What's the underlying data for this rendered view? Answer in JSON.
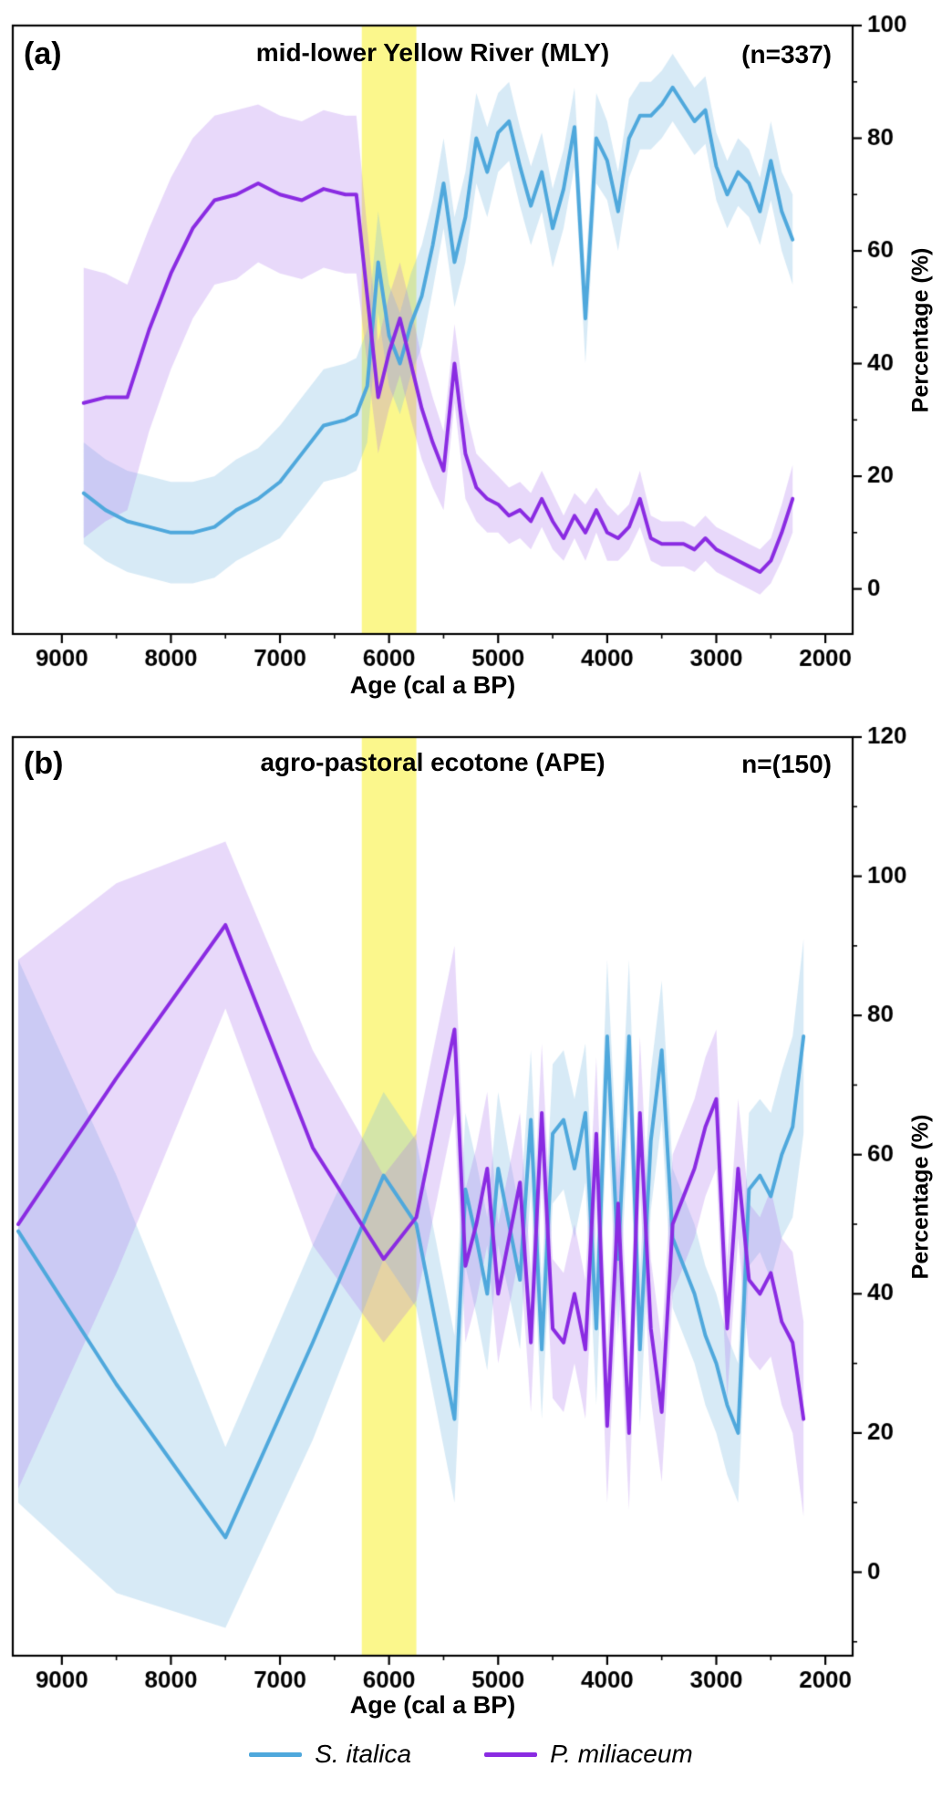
{
  "figure": {
    "legend": {
      "items": [
        {
          "label": "S. italica",
          "color": "#4FA8DC"
        },
        {
          "label": "P. miliaceum",
          "color": "#8A2BE2"
        }
      ]
    }
  },
  "chart_data": [
    {
      "type": "line",
      "panel_label": "(a)",
      "title": "mid-lower Yellow River (MLY)",
      "n_label": "(n=337)",
      "xlabel": "Age (cal a BP)",
      "ylabel": "Percentage (%)",
      "x_axis_reversed": true,
      "xlim": [
        9450,
        1750
      ],
      "ylim": [
        -8,
        100
      ],
      "x_ticks": [
        9000,
        8000,
        7000,
        6000,
        5000,
        4000,
        3000,
        2000
      ],
      "y_ticks": [
        0,
        20,
        40,
        60,
        80,
        100
      ],
      "x_minor_step": 500,
      "y_minor_step": 10,
      "grid": false,
      "highlight_band": {
        "x_from": 6250,
        "x_to": 5750,
        "color": "rgba(250,246,120,0.85)"
      },
      "x": [
        8800,
        8600,
        8400,
        8200,
        8000,
        7800,
        7600,
        7400,
        7200,
        7000,
        6800,
        6600,
        6400,
        6300,
        6200,
        6100,
        6000,
        5900,
        5800,
        5700,
        5600,
        5500,
        5400,
        5300,
        5200,
        5100,
        5000,
        4900,
        4800,
        4700,
        4600,
        4500,
        4400,
        4300,
        4200,
        4100,
        4000,
        3900,
        3800,
        3700,
        3600,
        3500,
        3400,
        3300,
        3200,
        3100,
        3000,
        2900,
        2800,
        2700,
        2600,
        2500,
        2400,
        2300
      ],
      "series": [
        {
          "name": "S. italica",
          "color": "#4FA8DC",
          "band_color": "rgba(130,190,228,0.32)",
          "y": [
            17,
            14,
            12,
            11,
            10,
            10,
            11,
            14,
            16,
            19,
            24,
            29,
            30,
            31,
            36,
            58,
            45,
            40,
            47,
            52,
            61,
            72,
            58,
            66,
            80,
            74,
            81,
            83,
            75,
            68,
            74,
            64,
            71,
            82,
            48,
            80,
            76,
            67,
            80,
            84,
            84,
            86,
            89,
            86,
            83,
            85,
            75,
            70,
            74,
            72,
            67,
            76,
            67,
            62
          ],
          "band": [
            9,
            9,
            9,
            9,
            9,
            9,
            9,
            9,
            9,
            10,
            10,
            10,
            10,
            10,
            10,
            9,
            9,
            9,
            9,
            9,
            8,
            8,
            8,
            8,
            8,
            8,
            7,
            7,
            7,
            7,
            7,
            7,
            7,
            7,
            8,
            8,
            7,
            7,
            7,
            6,
            6,
            6,
            6,
            6,
            6,
            6,
            6,
            6,
            6,
            6,
            6,
            7,
            7,
            8
          ]
        },
        {
          "name": "P. miliaceum",
          "color": "#8A2BE2",
          "band_color": "rgba(165,110,235,0.26)",
          "y": [
            33,
            34,
            34,
            46,
            56,
            64,
            69,
            70,
            72,
            70,
            69,
            71,
            70,
            70,
            52,
            34,
            42,
            48,
            40,
            32,
            26,
            21,
            40,
            24,
            18,
            16,
            15,
            13,
            14,
            12,
            16,
            12,
            9,
            13,
            10,
            14,
            10,
            9,
            11,
            16,
            9,
            8,
            8,
            8,
            7,
            9,
            7,
            6,
            5,
            4,
            3,
            5,
            10,
            16
          ],
          "band": [
            24,
            22,
            20,
            18,
            17,
            16,
            15,
            15,
            14,
            14,
            14,
            14,
            14,
            14,
            12,
            10,
            10,
            10,
            10,
            9,
            8,
            7,
            7,
            8,
            6,
            6,
            5,
            5,
            5,
            5,
            5,
            5,
            4,
            4,
            5,
            4,
            5,
            4,
            4,
            5,
            4,
            4,
            4,
            4,
            4,
            4,
            4,
            4,
            4,
            4,
            4,
            4,
            5,
            6
          ]
        }
      ]
    },
    {
      "type": "line",
      "panel_label": "(b)",
      "title": "agro-pastoral ecotone (APE)",
      "n_label": "n=(150)",
      "xlabel": "Age (cal a BP)",
      "ylabel": "Percentage (%)",
      "x_axis_reversed": true,
      "xlim": [
        9450,
        1750
      ],
      "ylim": [
        -12,
        120
      ],
      "x_ticks": [
        9000,
        8000,
        7000,
        6000,
        5000,
        4000,
        3000,
        2000
      ],
      "y_ticks": [
        0,
        20,
        40,
        60,
        80,
        100,
        120
      ],
      "x_minor_step": 500,
      "y_minor_step": 10,
      "grid": false,
      "highlight_band": {
        "x_from": 6250,
        "x_to": 5750,
        "color": "rgba(250,246,120,0.85)"
      },
      "x": [
        9400,
        8500,
        7500,
        6700,
        6050,
        5750,
        5400,
        5300,
        5200,
        5100,
        5000,
        4900,
        4800,
        4700,
        4600,
        4500,
        4400,
        4300,
        4200,
        4100,
        4000,
        3900,
        3800,
        3700,
        3600,
        3500,
        3400,
        3300,
        3200,
        3100,
        3000,
        2900,
        2800,
        2700,
        2600,
        2500,
        2400,
        2300,
        2200
      ],
      "series": [
        {
          "name": "S. italica",
          "color": "#4FA8DC",
          "band_color": "rgba(130,190,228,0.32)",
          "y": [
            49,
            27,
            5,
            33,
            57,
            50,
            22,
            55,
            48,
            40,
            58,
            50,
            42,
            65,
            32,
            63,
            65,
            58,
            66,
            35,
            77,
            45,
            77,
            32,
            62,
            75,
            48,
            44,
            40,
            34,
            30,
            24,
            20,
            55,
            57,
            54,
            60,
            64,
            77
          ],
          "band": [
            39,
            30,
            13,
            14,
            12,
            12,
            12,
            11,
            11,
            11,
            11,
            10,
            10,
            10,
            10,
            10,
            10,
            10,
            10,
            11,
            11,
            11,
            11,
            11,
            10,
            10,
            10,
            10,
            10,
            10,
            10,
            10,
            10,
            11,
            11,
            12,
            12,
            13,
            14
          ]
        },
        {
          "name": "P. miliaceum",
          "color": "#8A2BE2",
          "band_color": "rgba(165,110,235,0.26)",
          "y": [
            50,
            71,
            93,
            61,
            45,
            51,
            78,
            44,
            50,
            58,
            40,
            48,
            56,
            33,
            66,
            35,
            33,
            40,
            32,
            63,
            21,
            53,
            20,
            66,
            35,
            23,
            50,
            54,
            58,
            64,
            68,
            35,
            58,
            42,
            40,
            43,
            36,
            33,
            22
          ],
          "band": [
            38,
            28,
            12,
            14,
            12,
            12,
            12,
            11,
            11,
            11,
            10,
            10,
            10,
            10,
            10,
            10,
            10,
            10,
            10,
            11,
            11,
            11,
            11,
            11,
            10,
            10,
            10,
            10,
            10,
            10,
            10,
            10,
            10,
            11,
            11,
            12,
            12,
            13,
            14
          ]
        }
      ]
    }
  ]
}
